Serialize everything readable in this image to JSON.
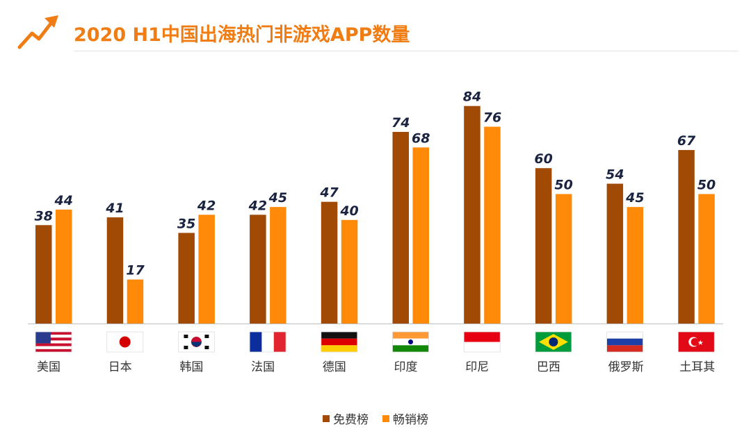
{
  "title": "2020 H1中国出海热门非游戏APP数量",
  "colors": {
    "accent": "#f07c14",
    "free": "#a04a06",
    "paid": "#ff8a0a",
    "label": "#1a2340"
  },
  "chart_data": {
    "type": "bar",
    "title": "2020 H1中国出海热门非游戏APP数量",
    "xlabel": "",
    "ylabel": "",
    "ylim": [
      0,
      90
    ],
    "grid": false,
    "legend": "bottom-center",
    "categories": [
      "美国",
      "日本",
      "韩国",
      "法国",
      "德国",
      "印度",
      "印尼",
      "巴西",
      "俄罗斯",
      "土耳其"
    ],
    "flags": [
      "us-flag-icon",
      "japan-flag-icon",
      "korea-flag-icon",
      "france-flag-icon",
      "germany-flag-icon",
      "india-flag-icon",
      "indonesia-flag-icon",
      "brazil-flag-icon",
      "russia-flag-icon",
      "turkey-flag-icon"
    ],
    "series": [
      {
        "name": "免费榜",
        "values": [
          38,
          41,
          35,
          42,
          47,
          74,
          84,
          60,
          54,
          67
        ]
      },
      {
        "name": "畅销榜",
        "values": [
          44,
          17,
          42,
          45,
          40,
          68,
          76,
          50,
          45,
          50
        ]
      }
    ]
  }
}
